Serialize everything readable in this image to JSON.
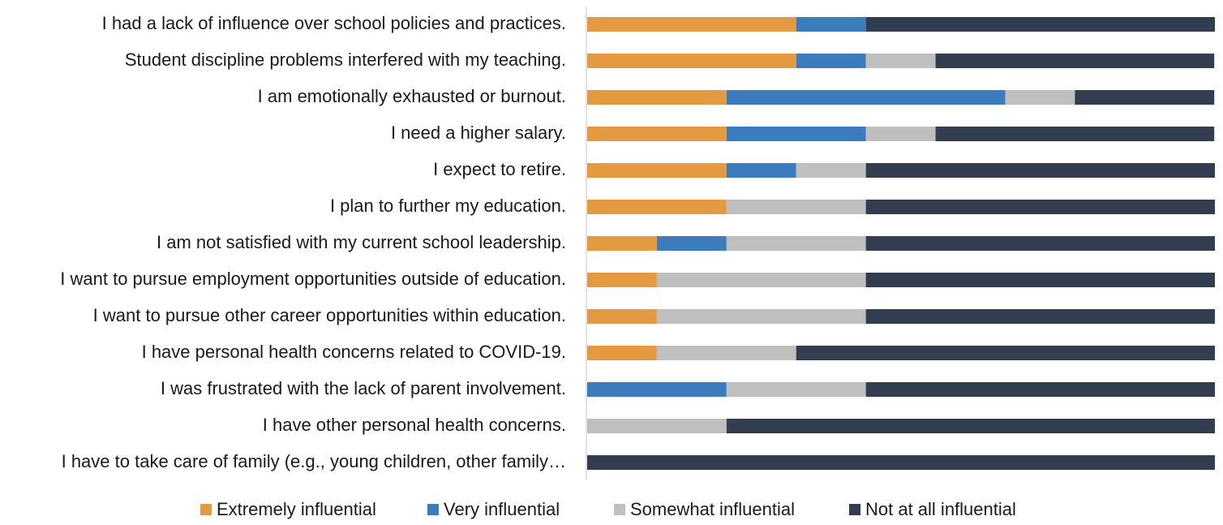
{
  "chart_data": {
    "type": "stacked-barh",
    "categories": [
      "I had a lack of influence over school policies and practices.",
      "Student discipline problems interfered with my teaching.",
      "I am emotionally exhausted or burnout.",
      "I need a higher salary.",
      "I expect to retire.",
      "I plan to further my education.",
      "I am not satisfied with my current school leadership.",
      "I want to pursue employment opportunities outside of education.",
      "I want to pursue other career opportunities within education.",
      "I have personal health concerns related to COVID-19.",
      "I was frustrated with the lack of parent involvement.",
      "I have other personal health concerns.",
      "I have to take care of family (e.g., young children, other family…"
    ],
    "series": [
      {
        "name": "Extremely influential",
        "color": "#E39A41",
        "values": [
          33.3,
          33.3,
          22.2,
          22.2,
          22.2,
          22.2,
          11.1,
          11.1,
          11.1,
          11.1,
          0,
          0,
          0
        ]
      },
      {
        "name": "Very influential",
        "color": "#3D7CBC",
        "values": [
          11.1,
          11.1,
          44.4,
          22.2,
          11.1,
          0,
          11.1,
          0,
          0,
          0,
          22.2,
          0,
          0
        ]
      },
      {
        "name": "Somewhat influential",
        "color": "#BFBFBF",
        "values": [
          0,
          11.1,
          11.1,
          11.1,
          11.1,
          22.2,
          22.2,
          33.3,
          33.3,
          22.2,
          22.2,
          22.2,
          0
        ]
      },
      {
        "name": "Not at all influential",
        "color": "#323E4F",
        "values": [
          55.6,
          44.4,
          22.2,
          44.4,
          55.6,
          55.6,
          55.6,
          55.6,
          55.6,
          66.7,
          55.6,
          77.8,
          100
        ]
      }
    ],
    "xlim": [
      0,
      100
    ]
  }
}
